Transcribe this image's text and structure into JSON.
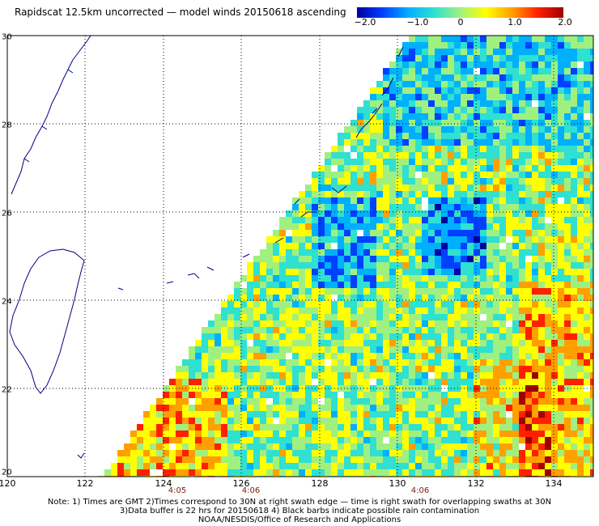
{
  "title": "Rapidscat 12.5km uncorrected — model winds 20150618 ascending",
  "colorbar": {
    "labels": [
      "−2.0",
      "−1.0",
      "0",
      "1.0",
      "2.0"
    ],
    "min": -2.0,
    "max": 2.0,
    "colors": [
      "#0000a0",
      "#0040ff",
      "#00b0ff",
      "#30e0d0",
      "#a0f080",
      "#ffff00",
      "#ffa000",
      "#ff2000",
      "#a00000"
    ]
  },
  "map": {
    "lon_range": [
      120,
      135
    ],
    "lat_range": [
      20,
      30
    ],
    "x_ticks": [
      "120",
      "122",
      "124",
      "126",
      "128",
      "130",
      "132",
      "134"
    ],
    "y_ticks": [
      "30",
      "28",
      "26",
      "24",
      "22",
      "20"
    ],
    "land_color": "#000080",
    "missing_color": "#ffffff",
    "swath_edge_note": "diagonal swath boundary"
  },
  "times": [
    "4:05",
    "4:06",
    "4:06"
  ],
  "notes": [
    "Note: 1) Times are GMT 2)Times correspond to 30N at right swath edge — time is right swath for overlapping swaths at 30N",
    "3)Data buffer is 22 hrs for 20150618 4) Black barbs indicate possible rain contamination",
    "NOAA/NESDIS/Office of Research and Applications"
  ]
}
